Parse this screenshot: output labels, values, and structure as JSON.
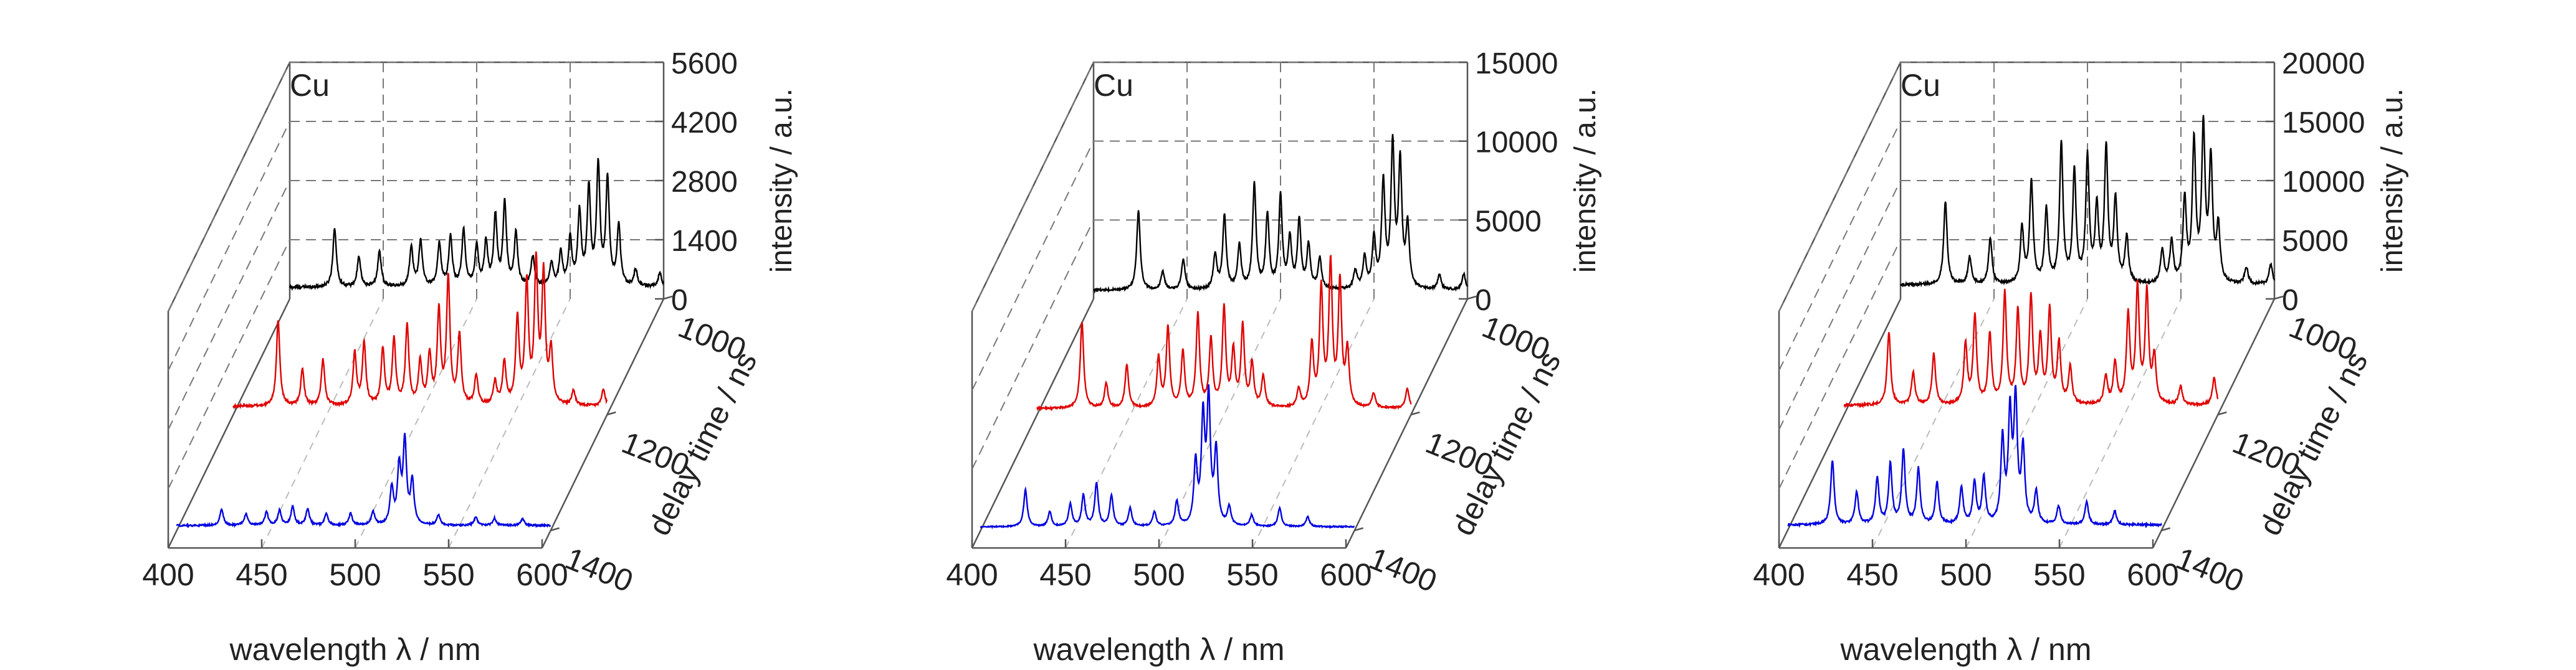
{
  "chart_data": [
    {
      "type": "line",
      "panel_label": "Cu",
      "xlabel": "wavelength λ / nm",
      "ylabel": "intensity / a.u.",
      "zlabel": "delay time / ns",
      "xlim": [
        400,
        600
      ],
      "x_ticks": [
        "400",
        "450",
        "500",
        "550",
        "600"
      ],
      "ylim": [
        0,
        5600
      ],
      "y_ticks": [
        "0",
        "1400",
        "2800",
        "4200",
        "5600"
      ],
      "z_ticks": [
        "1000",
        "1200",
        "1400"
      ],
      "series": [
        {
          "delay": 1000,
          "color": "#000000",
          "base": 350,
          "noise": 90,
          "peaks": [
            [
              424,
              1800
            ],
            [
              437,
              900
            ],
            [
              448,
              1100
            ],
            [
              465,
              1200
            ],
            [
              470,
              1400
            ],
            [
              480,
              1300
            ],
            [
              486,
              1500
            ],
            [
              493,
              1700
            ],
            [
              500,
              1200
            ],
            [
              505,
              1300
            ],
            [
              510,
              2100
            ],
            [
              515,
              2500
            ],
            [
              521,
              1600
            ],
            [
              530,
              900
            ],
            [
              540,
              700
            ],
            [
              545,
              1000
            ],
            [
              550,
              1400
            ],
            [
              555,
              2200
            ],
            [
              560,
              2900
            ],
            [
              565,
              3600
            ],
            [
              570,
              3200
            ],
            [
              576,
              1800
            ],
            [
              585,
              500
            ],
            [
              598,
              420
            ],
            [
              615,
              300
            ]
          ]
        },
        {
          "delay": 1200,
          "color": "#e00000",
          "base": 250,
          "noise": 70,
          "peaks": [
            [
              424,
              2600
            ],
            [
              437,
              1100
            ],
            [
              448,
              1400
            ],
            [
              465,
              1600
            ],
            [
              470,
              1900
            ],
            [
              480,
              1700
            ],
            [
              486,
              2000
            ],
            [
              493,
              2400
            ],
            [
              500,
              1300
            ],
            [
              505,
              1500
            ],
            [
              510,
              2800
            ],
            [
              515,
              3800
            ],
            [
              521,
              2100
            ],
            [
              530,
              900
            ],
            [
              540,
              700
            ],
            [
              545,
              1300
            ],
            [
              552,
              2600
            ],
            [
              557,
              3600
            ],
            [
              562,
              4200
            ],
            [
              566,
              3900
            ],
            [
              570,
              1600
            ],
            [
              582,
              450
            ],
            [
              598,
              500
            ],
            [
              615,
              300
            ]
          ]
        },
        {
          "delay": 1400,
          "color": "#0000e0",
          "base": 150,
          "noise": 50,
          "peaks": [
            [
              424,
              500
            ],
            [
              437,
              350
            ],
            [
              448,
              400
            ],
            [
              455,
              450
            ],
            [
              462,
              550
            ],
            [
              470,
              500
            ],
            [
              480,
              350
            ],
            [
              493,
              350
            ],
            [
              505,
              400
            ],
            [
              515,
              1100
            ],
            [
              519,
              1700
            ],
            [
              522,
              2500
            ],
            [
              526,
              1300
            ],
            [
              540,
              300
            ],
            [
              560,
              250
            ],
            [
              570,
              220
            ],
            [
              585,
              200
            ]
          ]
        }
      ]
    },
    {
      "type": "line",
      "panel_label": "Cu",
      "xlabel": "wavelength λ / nm",
      "ylabel": "intensity / a.u.",
      "zlabel": "delay time / ns",
      "xlim": [
        400,
        600
      ],
      "x_ticks": [
        "400",
        "450",
        "500",
        "550",
        "600"
      ],
      "ylim": [
        0,
        15000
      ],
      "y_ticks": [
        "0",
        "5000",
        "10000",
        "15000"
      ],
      "z_ticks": [
        "1000",
        "1200",
        "1400"
      ],
      "series": [
        {
          "delay": 1000,
          "color": "#000000",
          "base": 700,
          "noise": 180,
          "peaks": [
            [
              424,
              6500
            ],
            [
              437,
              1500
            ],
            [
              448,
              2500
            ],
            [
              465,
              2800
            ],
            [
              470,
              6000
            ],
            [
              478,
              3500
            ],
            [
              486,
              8500
            ],
            [
              493,
              6000
            ],
            [
              500,
              7500
            ],
            [
              505,
              4000
            ],
            [
              510,
              5500
            ],
            [
              515,
              3500
            ],
            [
              521,
              2500
            ],
            [
              540,
              1500
            ],
            [
              545,
              2500
            ],
            [
              550,
              4000
            ],
            [
              555,
              8500
            ],
            [
              560,
              11500
            ],
            [
              564,
              10000
            ],
            [
              568,
              5000
            ],
            [
              585,
              1200
            ],
            [
              598,
              1300
            ],
            [
              615,
              900
            ]
          ]
        },
        {
          "delay": 1200,
          "color": "#e00000",
          "base": 500,
          "noise": 140,
          "peaks": [
            [
              424,
              7000
            ],
            [
              437,
              2000
            ],
            [
              448,
              3500
            ],
            [
              465,
              4000
            ],
            [
              470,
              6500
            ],
            [
              478,
              4500
            ],
            [
              486,
              7500
            ],
            [
              493,
              5500
            ],
            [
              500,
              8000
            ],
            [
              505,
              4500
            ],
            [
              510,
              6500
            ],
            [
              515,
              3500
            ],
            [
              521,
              2500
            ],
            [
              540,
              1500
            ],
            [
              547,
              5000
            ],
            [
              552,
              9500
            ],
            [
              557,
              11500
            ],
            [
              562,
              10000
            ],
            [
              566,
              4500
            ],
            [
              580,
              1200
            ],
            [
              598,
              1600
            ],
            [
              615,
              900
            ]
          ]
        },
        {
          "delay": 1400,
          "color": "#0000e0",
          "base": 300,
          "noise": 100,
          "peaks": [
            [
              424,
              3000
            ],
            [
              437,
              1200
            ],
            [
              448,
              1800
            ],
            [
              455,
              2500
            ],
            [
              462,
              3500
            ],
            [
              470,
              2500
            ],
            [
              480,
              1500
            ],
            [
              493,
              1200
            ],
            [
              505,
              2000
            ],
            [
              515,
              5000
            ],
            [
              519,
              8500
            ],
            [
              522,
              10000
            ],
            [
              526,
              6000
            ],
            [
              533,
              1500
            ],
            [
              545,
              900
            ],
            [
              560,
              1500
            ],
            [
              575,
              800
            ]
          ]
        }
      ]
    },
    {
      "type": "line",
      "panel_label": "Cu",
      "xlabel": "wavelength λ / nm",
      "ylabel": "intensity / a.u.",
      "zlabel": "delay time / ns",
      "xlim": [
        400,
        600
      ],
      "x_ticks": [
        "400",
        "450",
        "500",
        "550",
        "600"
      ],
      "ylim": [
        0,
        20000
      ],
      "y_ticks": [
        "0",
        "5000",
        "10000",
        "15000",
        "20000"
      ],
      "z_ticks": [
        "1000",
        "1200",
        "1400"
      ],
      "series": [
        {
          "delay": 1000,
          "color": "#000000",
          "base": 1500,
          "noise": 300,
          "peaks": [
            [
              424,
              9000
            ],
            [
              437,
              3000
            ],
            [
              448,
              5000
            ],
            [
              465,
              6000
            ],
            [
              470,
              11000
            ],
            [
              478,
              8000
            ],
            [
              486,
              15000
            ],
            [
              493,
              12000
            ],
            [
              500,
              13500
            ],
            [
              505,
              8000
            ],
            [
              510,
              14500
            ],
            [
              515,
              9000
            ],
            [
              521,
              5000
            ],
            [
              540,
              3500
            ],
            [
              545,
              4500
            ],
            [
              552,
              9000
            ],
            [
              557,
              15000
            ],
            [
              562,
              16500
            ],
            [
              566,
              13000
            ],
            [
              570,
              6000
            ],
            [
              585,
              1800
            ],
            [
              598,
              2200
            ],
            [
              615,
              1500
            ]
          ]
        },
        {
          "delay": 1200,
          "color": "#e00000",
          "base": 1000,
          "noise": 250,
          "peaks": [
            [
              424,
              8000
            ],
            [
              437,
              3500
            ],
            [
              448,
              5500
            ],
            [
              465,
              6500
            ],
            [
              470,
              9500
            ],
            [
              478,
              7500
            ],
            [
              486,
              12000
            ],
            [
              493,
              10000
            ],
            [
              500,
              11500
            ],
            [
              505,
              7000
            ],
            [
              510,
              10000
            ],
            [
              515,
              6500
            ],
            [
              521,
              4000
            ],
            [
              540,
              3000
            ],
            [
              545,
              4500
            ],
            [
              552,
              9500
            ],
            [
              557,
              12500
            ],
            [
              562,
              12000
            ],
            [
              566,
              5000
            ],
            [
              580,
              2000
            ],
            [
              598,
              3000
            ],
            [
              615,
              1500
            ]
          ]
        },
        {
          "delay": 1400,
          "color": "#0000e0",
          "base": 600,
          "noise": 200,
          "peaks": [
            [
              424,
              7000
            ],
            [
              437,
              3500
            ],
            [
              448,
              5000
            ],
            [
              455,
              6500
            ],
            [
              462,
              8000
            ],
            [
              470,
              6000
            ],
            [
              480,
              4500
            ],
            [
              493,
              4000
            ],
            [
              500,
              4500
            ],
            [
              505,
              5000
            ],
            [
              515,
              9000
            ],
            [
              519,
              11500
            ],
            [
              522,
              13000
            ],
            [
              526,
              8000
            ],
            [
              533,
              3500
            ],
            [
              545,
              2000
            ],
            [
              560,
              2500
            ],
            [
              575,
              1500
            ]
          ]
        }
      ]
    }
  ]
}
